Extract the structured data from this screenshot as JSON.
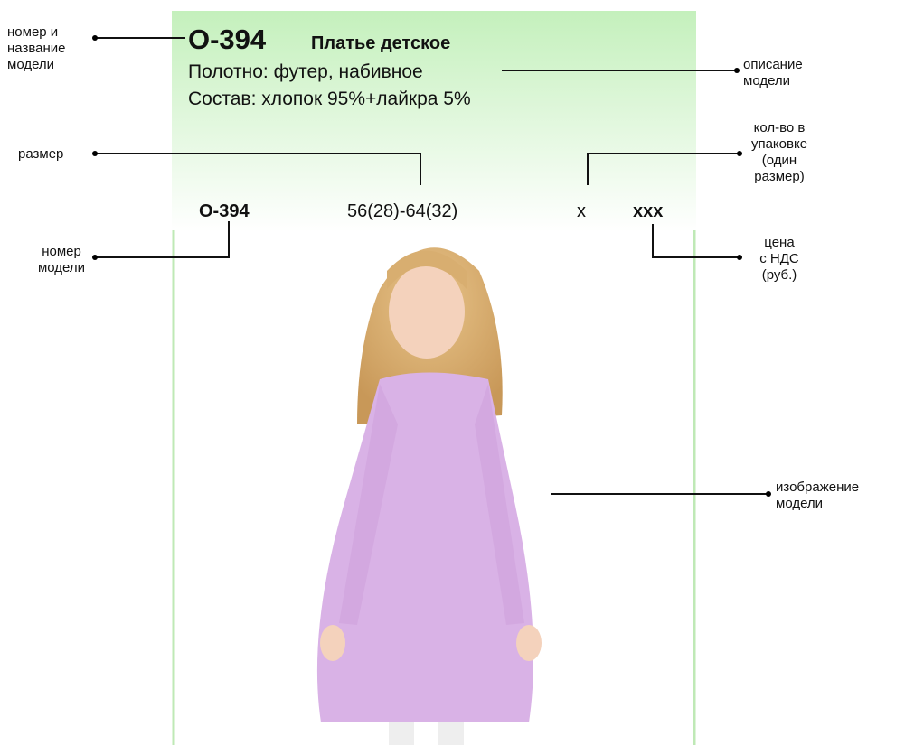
{
  "card": {
    "title_code": "О-394",
    "title_name": "Платье детское",
    "description": [
      "Полотно: футер, набивное",
      "Состав: хлопок 95%+лайкра 5%"
    ],
    "row": {
      "code": "О-394",
      "size": "56(28)-64(32)",
      "x": "x",
      "price": "xxx"
    }
  },
  "annotations": [
    {
      "lines": [
        "номер и",
        "название",
        "модели"
      ]
    },
    {
      "lines": [
        "описание",
        "модели"
      ]
    },
    {
      "lines": [
        "размер"
      ]
    },
    {
      "lines": [
        "кол-во в",
        "упаковке",
        "(один",
        "размер)"
      ]
    },
    {
      "lines": [
        "номер",
        "модели"
      ]
    },
    {
      "lines": [
        "цена",
        "с НДС",
        "(руб.)"
      ]
    },
    {
      "lines": [
        "изображение",
        "модели"
      ]
    }
  ]
}
